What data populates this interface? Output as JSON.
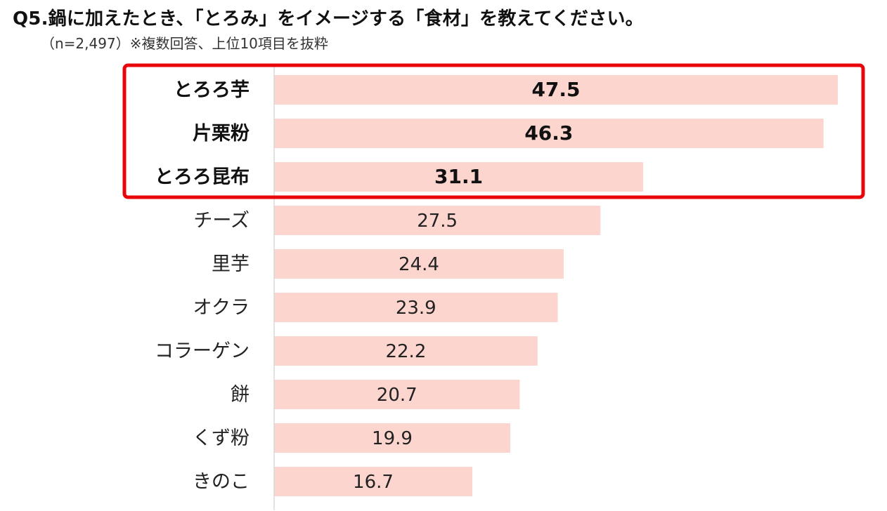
{
  "header": {
    "title": "Q5.鍋に加えたとき、「とろみ」をイメージする「食材」を教えてください。",
    "subtitle": "（n=2,497）※複数回答、上位10項目を抜粋"
  },
  "chart_data": {
    "type": "bar",
    "orientation": "horizontal",
    "categories": [
      "とろろ芋",
      "片栗粉",
      "とろろ昆布",
      "チーズ",
      "里芋",
      "オクラ",
      "コラーゲン",
      "餅",
      "くず粉",
      "きのこ"
    ],
    "values": [
      47.5,
      46.3,
      31.1,
      27.5,
      24.4,
      23.9,
      22.2,
      20.7,
      19.9,
      16.7
    ],
    "value_labels": [
      "47.5",
      "46.3",
      "31.1",
      "27.5",
      "24.4",
      "23.9",
      "22.2",
      "20.7",
      "19.9",
      "16.7"
    ],
    "xlim": [
      0,
      47.5
    ],
    "highlighted_count": 3,
    "bar_color": "#fdd5cf",
    "highlight_box_color": "#e8060b",
    "axis_color": "#d9d9d9",
    "grid": false,
    "legend": "none"
  }
}
